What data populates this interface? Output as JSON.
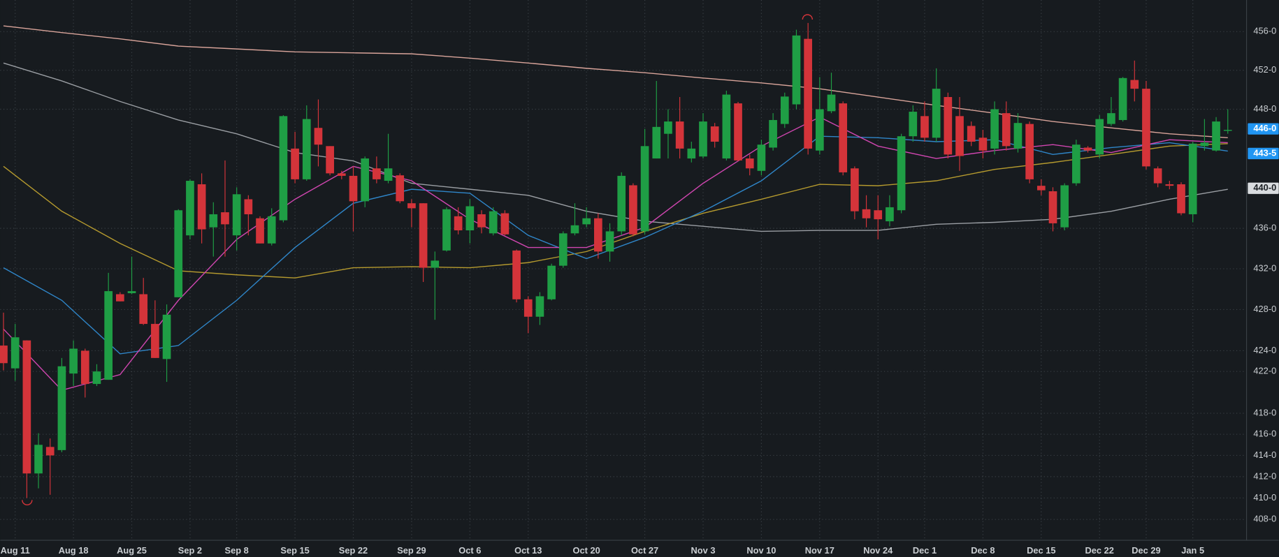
{
  "chart_data": {
    "type": "candlestick",
    "log_scale": true,
    "grid": true,
    "up_color": "#1f9e45",
    "down_color": "#d4343a",
    "ylim": [
      406.1,
      459.3
    ],
    "yticks": [
      {
        "value": 456,
        "label": "456-0"
      },
      {
        "value": 452,
        "label": "452-0"
      },
      {
        "value": 448,
        "label": "448-0"
      },
      {
        "value": 436,
        "label": "436-0"
      },
      {
        "value": 432,
        "label": "432-0"
      },
      {
        "value": 428,
        "label": "428-0"
      },
      {
        "value": 424,
        "label": "424-0"
      },
      {
        "value": 422,
        "label": "422-0"
      },
      {
        "value": 418,
        "label": "418-0"
      },
      {
        "value": 416,
        "label": "416-0"
      },
      {
        "value": 414,
        "label": "414-0"
      },
      {
        "value": 412,
        "label": "412-0"
      },
      {
        "value": 410,
        "label": "410-0"
      },
      {
        "value": 408,
        "label": "408-0"
      }
    ],
    "categories": [
      null,
      "Aug 11",
      null,
      null,
      null,
      null,
      "Aug 18",
      null,
      null,
      null,
      null,
      "Aug 25",
      null,
      null,
      null,
      null,
      "Sep 2",
      null,
      null,
      null,
      "Sep 8",
      null,
      null,
      null,
      null,
      "Sep 15",
      null,
      null,
      null,
      null,
      "Sep 22",
      null,
      null,
      null,
      null,
      "Sep 29",
      null,
      null,
      null,
      null,
      "Oct 6",
      null,
      null,
      null,
      null,
      "Oct 13",
      null,
      null,
      null,
      null,
      "Oct 20",
      null,
      null,
      null,
      null,
      "Oct 27",
      null,
      null,
      null,
      null,
      "Nov 3",
      null,
      null,
      null,
      null,
      "Nov 10",
      null,
      null,
      null,
      null,
      "Nov 17",
      null,
      null,
      null,
      null,
      "Nov 24",
      null,
      null,
      null,
      "Dec 1",
      null,
      null,
      null,
      null,
      "Dec 8",
      null,
      null,
      null,
      null,
      "Dec 15",
      null,
      null,
      null,
      null,
      "Dec 22",
      null,
      null,
      null,
      "Dec 29",
      null,
      null,
      null,
      "Jan 5",
      null,
      null,
      null
    ],
    "open": [
      424.5,
      422.3,
      425.0,
      412.3,
      414.8,
      414.5,
      421.8,
      424.0,
      420.8,
      421.2,
      429.5,
      429.6,
      429.5,
      426.6,
      423.2,
      429.2,
      435.3,
      440.4,
      436.1,
      437.6,
      435.3,
      438.9,
      437.0,
      434.5,
      436.8,
      444.0,
      440.9,
      446.1,
      444.25,
      441.5,
      441.25,
      438.7,
      442.0,
      440.75,
      441.3,
      438.5,
      438.5,
      432.1,
      433.8,
      437.2,
      435.8,
      437.4,
      435.5,
      437.5,
      433.8,
      429.0,
      427.3,
      429.0,
      432.3,
      435.5,
      436.4,
      437.0,
      433.7,
      435.7,
      440.3,
      435.7,
      443.0,
      445.5,
      446.75,
      443.0,
      443.2,
      446.25,
      443.0,
      448.6,
      443.0,
      441.75,
      444.1,
      446.5,
      448.5,
      455.25,
      443.8,
      447.8,
      448.6,
      442.0,
      437.9,
      437.8,
      436.7,
      437.8,
      445.25,
      447.3,
      445.1,
      449.25,
      447.3,
      446.3,
      445.1,
      444.0,
      447.6,
      444.0,
      446.5,
      440.25,
      439.7,
      436.1,
      440.5,
      444.1,
      443.4,
      446.5,
      446.9,
      451.0,
      450.1,
      442.0,
      440.4,
      440.4,
      437.4,
      444.25,
      443.8,
      445.8
    ],
    "high": [
      427.7,
      426.6,
      425.0,
      416.1,
      415.6,
      423.3,
      425.0,
      424.2,
      422.7,
      431.6,
      429.7,
      433.2,
      431.1,
      428.9,
      428.5,
      437.9,
      440.9,
      441.5,
      438.6,
      442.8,
      440.1,
      439.3,
      437.2,
      438.0,
      447.4,
      445.7,
      448.4,
      449.0,
      444.25,
      441.75,
      442.2,
      443.2,
      443.2,
      445.5,
      441.5,
      438.9,
      438.5,
      433.7,
      438.1,
      438.1,
      438.9,
      437.8,
      438.1,
      437.8,
      433.9,
      429.3,
      429.7,
      432.5,
      435.7,
      438.5,
      438.1,
      437.5,
      436.5,
      441.6,
      440.5,
      446.0,
      450.9,
      448.0,
      449.25,
      444.7,
      447.6,
      446.6,
      449.9,
      448.75,
      443.4,
      444.9,
      447.6,
      449.7,
      456.2,
      456.9,
      451.3,
      451.75,
      448.8,
      442.2,
      439.3,
      439.3,
      439.3,
      445.5,
      448.4,
      448.8,
      452.2,
      449.7,
      449.25,
      446.75,
      445.9,
      448.8,
      448.8,
      447.6,
      446.75,
      440.9,
      440.1,
      440.5,
      444.9,
      444.25,
      447.4,
      449.25,
      451.3,
      453.0,
      450.9,
      442.2,
      440.75,
      440.6,
      444.7,
      447.0,
      447.2,
      448.0
    ],
    "low": [
      422.1,
      421.1,
      410.0,
      410.9,
      410.3,
      414.3,
      420.6,
      419.5,
      420.6,
      421.2,
      428.8,
      429.5,
      426.5,
      423.3,
      421.0,
      429.2,
      434.9,
      434.5,
      433.2,
      433.2,
      433.8,
      435.3,
      434.5,
      434.3,
      436.6,
      440.5,
      440.75,
      442.2,
      441.3,
      440.9,
      435.7,
      438.1,
      440.5,
      440.5,
      438.5,
      436.1,
      430.7,
      427.0,
      433.7,
      435.4,
      434.5,
      435.5,
      435.3,
      435.3,
      428.7,
      425.7,
      426.5,
      428.9,
      432.1,
      435.3,
      436.1,
      433.0,
      432.7,
      435.3,
      435.2,
      435.4,
      443.0,
      443.0,
      443.0,
      442.6,
      443.0,
      444.1,
      442.8,
      442.75,
      441.3,
      441.3,
      443.8,
      446.1,
      448.0,
      443.4,
      443.4,
      447.6,
      441.3,
      436.9,
      436.1,
      434.9,
      436.2,
      437.5,
      444.7,
      444.7,
      444.7,
      443.0,
      441.75,
      444.25,
      443.0,
      443.4,
      443.8,
      443.6,
      440.5,
      439.3,
      435.7,
      435.8,
      440.25,
      443.6,
      443.0,
      446.3,
      446.75,
      448.8,
      441.9,
      440.1,
      439.9,
      437.3,
      436.6,
      443.8,
      443.7,
      445.5
    ],
    "close": [
      422.8,
      425.3,
      412.3,
      415.0,
      414.0,
      422.5,
      424.2,
      420.8,
      422.0,
      429.8,
      428.8,
      429.8,
      426.6,
      423.3,
      427.5,
      437.8,
      440.75,
      435.9,
      437.4,
      436.4,
      439.4,
      437.4,
      434.5,
      437.2,
      447.3,
      440.9,
      447.0,
      444.4,
      441.5,
      441.25,
      438.7,
      443.0,
      440.9,
      442.0,
      438.7,
      438.0,
      432.1,
      432.8,
      437.9,
      435.8,
      438.2,
      436.1,
      437.7,
      435.4,
      429.0,
      427.3,
      429.3,
      432.3,
      435.5,
      436.3,
      437.0,
      433.7,
      435.7,
      441.25,
      435.4,
      444.25,
      446.2,
      446.75,
      444.0,
      444.0,
      446.75,
      444.7,
      449.5,
      442.8,
      442.0,
      444.4,
      446.9,
      449.3,
      455.6,
      444.0,
      448.0,
      449.5,
      441.6,
      437.7,
      437.0,
      436.9,
      438.1,
      445.25,
      447.75,
      445.1,
      450.1,
      443.4,
      443.25,
      444.7,
      443.8,
      448.0,
      444.25,
      446.6,
      440.9,
      439.8,
      436.5,
      440.3,
      444.4,
      443.8,
      447.0,
      447.6,
      451.2,
      450.1,
      442.2,
      440.5,
      440.25,
      437.5,
      444.5,
      444.6,
      446.75,
      445.9
    ],
    "overlays": [
      {
        "color": "#9a9ea3",
        "x": [
          0,
          5,
          10,
          15,
          20,
          25,
          30,
          35,
          40,
          45,
          50,
          55,
          60,
          65,
          70,
          75,
          80,
          85,
          90,
          95,
          100,
          105
        ],
        "values": [
          452.75,
          450.9,
          448.8,
          446.9,
          445.5,
          443.6,
          442.75,
          440.5,
          439.9,
          439.3,
          437.7,
          436.7,
          436.2,
          435.7,
          435.8,
          435.8,
          436.4,
          436.6,
          436.9,
          437.7,
          438.9,
          439.9
        ]
      },
      {
        "color": "#d9a49a",
        "x": [
          0,
          5,
          10,
          15,
          20,
          25,
          30,
          35,
          40,
          45,
          50,
          55,
          60,
          65,
          70,
          75,
          80,
          85,
          90,
          95,
          100,
          105
        ],
        "values": [
          456.6,
          455.9,
          455.25,
          454.5,
          454.2,
          453.9,
          453.8,
          453.7,
          453.25,
          452.75,
          452.2,
          451.75,
          451.2,
          450.7,
          450.1,
          449.25,
          448.4,
          447.6,
          446.75,
          446.1,
          445.5,
          445.1
        ]
      },
      {
        "color": "#b59a2e",
        "x": [
          0,
          5,
          10,
          15,
          20,
          25,
          30,
          35,
          40,
          45,
          50,
          55,
          60,
          65,
          70,
          75,
          80,
          85,
          90,
          95,
          100,
          105
        ],
        "values": [
          442.2,
          437.7,
          434.5,
          431.8,
          431.4,
          431.1,
          432.1,
          432.2,
          432.1,
          432.6,
          433.7,
          435.7,
          437.5,
          438.9,
          440.4,
          440.25,
          440.75,
          441.9,
          442.6,
          443.4,
          444.25,
          444.5
        ]
      },
      {
        "color": "#2f86c9",
        "x": [
          0,
          5,
          10,
          15,
          20,
          25,
          30,
          35,
          40,
          45,
          50,
          55,
          60,
          65,
          70,
          75,
          80,
          85,
          90,
          95,
          100,
          105
        ],
        "values": [
          432.1,
          428.9,
          423.7,
          424.5,
          428.9,
          434.1,
          438.5,
          439.9,
          439.5,
          435.3,
          433.0,
          435.1,
          437.7,
          440.75,
          445.25,
          445.1,
          444.7,
          444.9,
          443.4,
          444.1,
          444.6,
          443.75
        ]
      },
      {
        "color": "#d046b0",
        "x": [
          0,
          5,
          10,
          15,
          20,
          25,
          30,
          35,
          40,
          45,
          50,
          55,
          60,
          65,
          70,
          75,
          80,
          85,
          90,
          95,
          100,
          105
        ],
        "values": [
          426.1,
          420.2,
          421.7,
          428.9,
          434.9,
          438.9,
          442.2,
          440.75,
          436.9,
          434.1,
          434.1,
          436.1,
          440.5,
          444.25,
          447.2,
          444.25,
          443.0,
          443.8,
          444.4,
          443.6,
          444.9,
          444.6
        ]
      }
    ],
    "price_labels": [
      {
        "value": 446,
        "label": "446-0",
        "color": "#2196f3",
        "text_color": "#ffffff"
      },
      {
        "value": 443.5,
        "label": "443-5",
        "color": "#2196f3",
        "text_color": "#ffffff"
      },
      {
        "value": 440,
        "label": "440-0",
        "color": "#d9dcdf",
        "text_color": "#1b1f23"
      }
    ]
  }
}
